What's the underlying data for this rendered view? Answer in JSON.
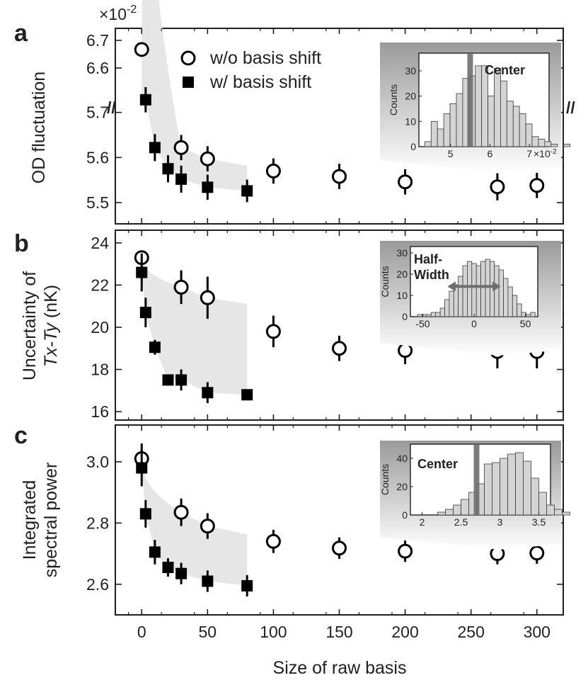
{
  "legend": {
    "open": "w/o basis shift",
    "filled": "w/ basis shift"
  },
  "xlabel": "Size of raw basis",
  "x_ticks": [
    "0",
    "50",
    "100",
    "150",
    "200",
    "250",
    "300"
  ],
  "colors": {
    "marker": "#000000",
    "band": "#e6e6e6",
    "axis": "#231f20",
    "hist_bar": "#d4d4d4",
    "hist_marker": "#6e6e6e"
  },
  "chart_data": [
    {
      "type": "scatter",
      "panel_label": "a",
      "ylabel": "OD fluctuation",
      "y_exponent": "×10",
      "y_exponent_power": "-2",
      "axis_break": "//",
      "xlim": [
        -20,
        320
      ],
      "y_ticks_upper": [
        "6.6",
        "6.7"
      ],
      "y_ticks_lower": [
        "5.5",
        "5.6",
        "5.7"
      ],
      "series": [
        {
          "name": "w/o basis shift",
          "marker": "open-circle",
          "x": [
            0,
            30,
            50,
            100,
            150,
            200,
            270,
            300
          ],
          "y": [
            6.667,
            5.622,
            5.597,
            5.57,
            5.558,
            5.546,
            5.535,
            5.538
          ],
          "err": [
            0.025,
            0.028,
            0.028,
            0.028,
            0.028,
            0.028,
            0.03,
            0.028
          ]
        },
        {
          "name": "w/ basis shift",
          "marker": "filled-square",
          "x": [
            3,
            10,
            20,
            30,
            50,
            80
          ],
          "y": [
            5.728,
            5.622,
            5.575,
            5.552,
            5.534,
            5.526
          ],
          "err": [
            0.028,
            0.03,
            0.03,
            0.03,
            0.028,
            0.025
          ]
        }
      ],
      "inset": {
        "type": "bar",
        "label": "Center",
        "ylabel": "Counts",
        "x_ticks": [
          "5",
          "6",
          "7"
        ],
        "x_exponent": "×10",
        "x_exponent_power": "-2",
        "y_ticks": [
          "0",
          "10",
          "20",
          "30"
        ],
        "bin_start": 4.35,
        "bin_width": 0.16,
        "counts": [
          2,
          10,
          7,
          13,
          17,
          21,
          27,
          28,
          32,
          32,
          20,
          31,
          26,
          18,
          16,
          13,
          9,
          4,
          3,
          2,
          1,
          0,
          1
        ],
        "marker_x": 5.5
      }
    },
    {
      "type": "scatter",
      "panel_label": "b",
      "ylabel_line1": "Uncertainty of",
      "ylabel_line2": "Tx-Ty",
      "ylabel_line2_unit": " (nK)",
      "xlim": [
        -20,
        320
      ],
      "ylim": [
        15.6,
        24.6
      ],
      "y_ticks": [
        "16",
        "18",
        "20",
        "22",
        "24"
      ],
      "series": [
        {
          "name": "w/o basis shift",
          "marker": "open-circle",
          "x": [
            0,
            30,
            50,
            100,
            150,
            200,
            270,
            300
          ],
          "y": [
            23.3,
            21.9,
            21.4,
            19.8,
            19.0,
            18.9,
            18.85,
            18.85
          ],
          "err": [
            0.0,
            0.8,
            1.0,
            0.75,
            0.6,
            0.65,
            0.8,
            0.8
          ]
        },
        {
          "name": "w/ basis shift",
          "marker": "filled-square",
          "x": [
            0,
            3,
            10,
            20,
            30,
            50,
            80
          ],
          "y": [
            22.6,
            20.7,
            19.05,
            17.5,
            17.5,
            16.9,
            16.8
          ],
          "err": [
            0.9,
            0.7,
            0.35,
            0.0,
            0.5,
            0.5,
            0.0
          ]
        }
      ],
      "inset": {
        "type": "bar",
        "label": "Half-",
        "label2": "Width",
        "ylabel": "Counts",
        "x_ticks": [
          "-50",
          "0",
          "50"
        ],
        "y_ticks": [
          "0",
          "10",
          "20",
          "30"
        ],
        "bin_start": -55,
        "bin_width": 4.4,
        "counts": [
          1,
          1,
          1,
          2,
          2,
          4,
          8,
          12,
          15,
          19,
          24,
          26,
          25,
          24,
          26,
          27,
          26,
          24,
          22,
          18,
          14,
          10,
          6,
          2,
          1,
          2
        ],
        "marker_x": 0
      }
    },
    {
      "type": "scatter",
      "panel_label": "c",
      "ylabel_line1": "Integrated",
      "ylabel_line2": "spectral power",
      "xlim": [
        -20,
        320
      ],
      "ylim": [
        2.5,
        3.12
      ],
      "y_ticks": [
        "2.6",
        "2.8",
        "3.0"
      ],
      "series": [
        {
          "name": "w/o basis shift",
          "marker": "open-circle",
          "x": [
            0,
            30,
            50,
            100,
            150,
            200,
            270,
            300
          ],
          "y": [
            3.01,
            2.835,
            2.79,
            2.74,
            2.718,
            2.708,
            2.7,
            2.702
          ],
          "err": [
            0.05,
            0.045,
            0.042,
            0.038,
            0.035,
            0.035,
            0.035,
            0.035
          ]
        },
        {
          "name": "w/ basis shift",
          "marker": "filled-square",
          "x": [
            0,
            3,
            10,
            20,
            30,
            50,
            80
          ],
          "y": [
            2.98,
            2.83,
            2.705,
            2.655,
            2.635,
            2.61,
            2.595
          ],
          "err": [
            0.06,
            0.045,
            0.04,
            0.03,
            0.035,
            0.035,
            0.035
          ]
        }
      ],
      "inset": {
        "type": "bar",
        "label": "Center",
        "ylabel": "Counts",
        "x_ticks": [
          "2",
          "2.5",
          "3",
          "3.5"
        ],
        "y_ticks": [
          "0",
          "20",
          "40"
        ],
        "bin_start": 2.2,
        "bin_width": 0.1,
        "counts": [
          2,
          4,
          7,
          11,
          16,
          22,
          36,
          37,
          40,
          43,
          44,
          38,
          26,
          16,
          7,
          4,
          2
        ],
        "marker_x": 2.7
      }
    }
  ]
}
